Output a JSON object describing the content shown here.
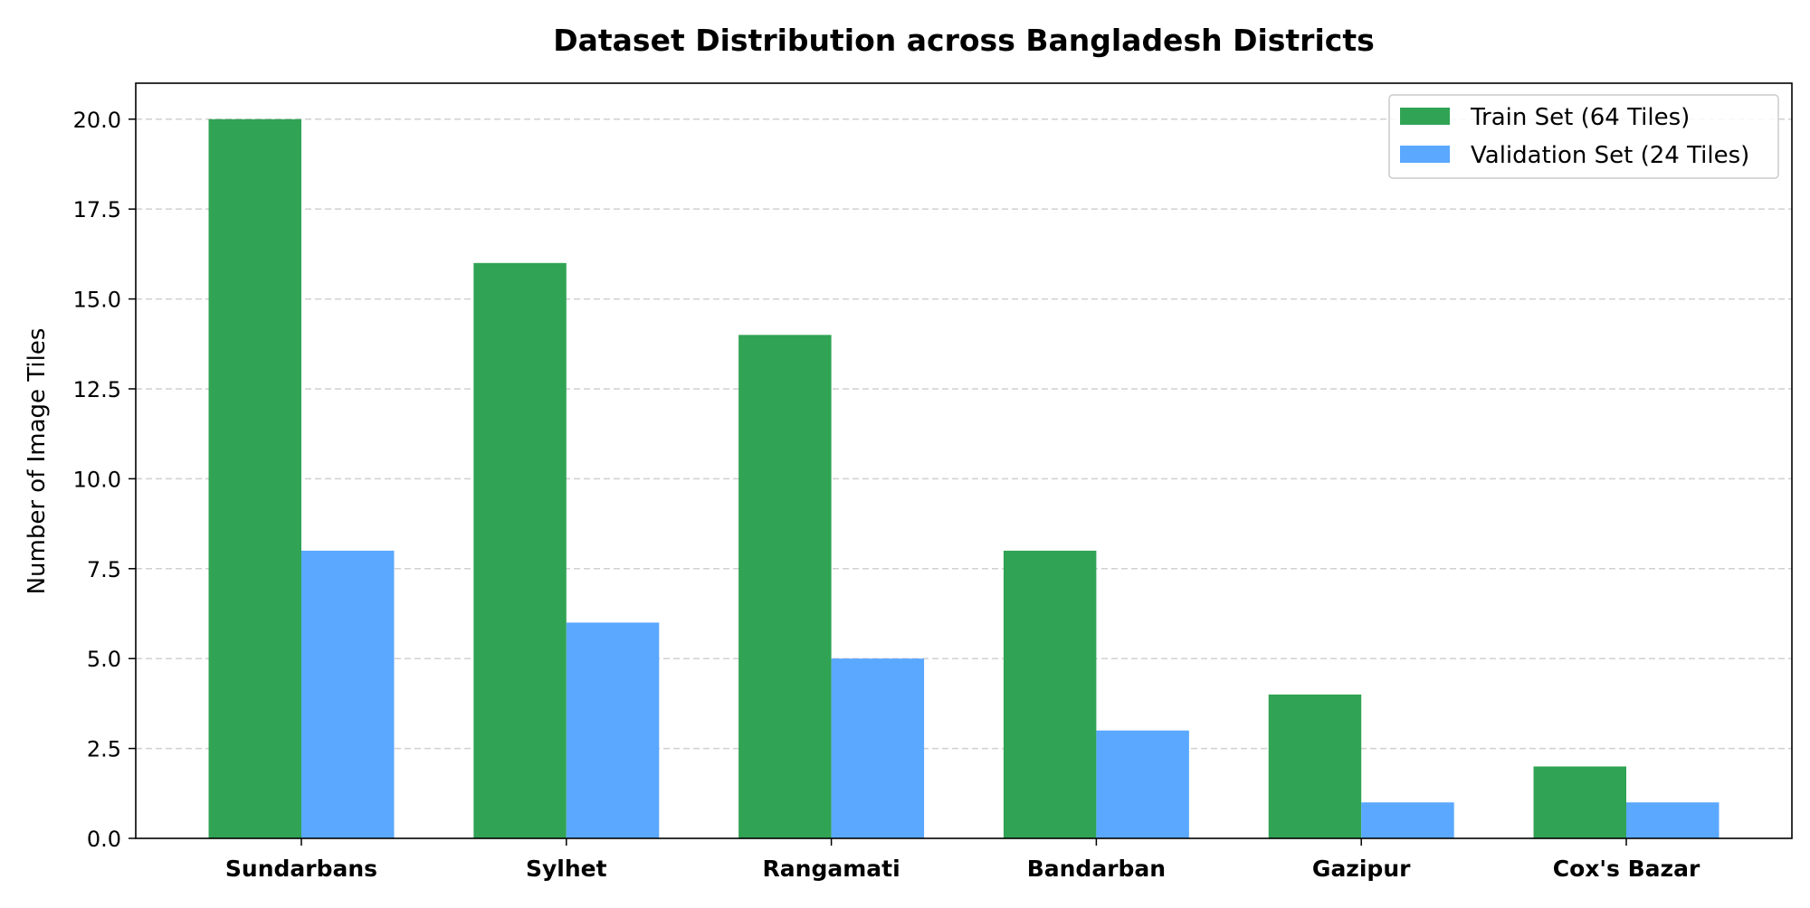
{
  "chart_data": {
    "type": "bar",
    "title": "Dataset Distribution across Bangladesh Districts",
    "xlabel": "",
    "ylabel": "Number of Image Tiles",
    "categories": [
      "Sundarbans",
      "Sylhet",
      "Rangamati",
      "Bandarban",
      "Gazipur",
      "Cox's Bazar"
    ],
    "series": [
      {
        "name": "Train Set (64 Tiles)",
        "values": [
          20,
          16,
          14,
          8,
          4,
          2
        ],
        "color": "#31a354"
      },
      {
        "name": "Validation Set (24 Tiles)",
        "values": [
          8,
          6,
          5,
          3,
          1,
          1
        ],
        "color": "#5aa8ff"
      }
    ],
    "ylim": [
      0,
      21
    ],
    "yticks": [
      "0.0",
      "2.5",
      "5.0",
      "7.5",
      "10.0",
      "12.5",
      "15.0",
      "17.5",
      "20.0"
    ],
    "grid": "horizontal dashed",
    "legend_position": "top-right"
  }
}
